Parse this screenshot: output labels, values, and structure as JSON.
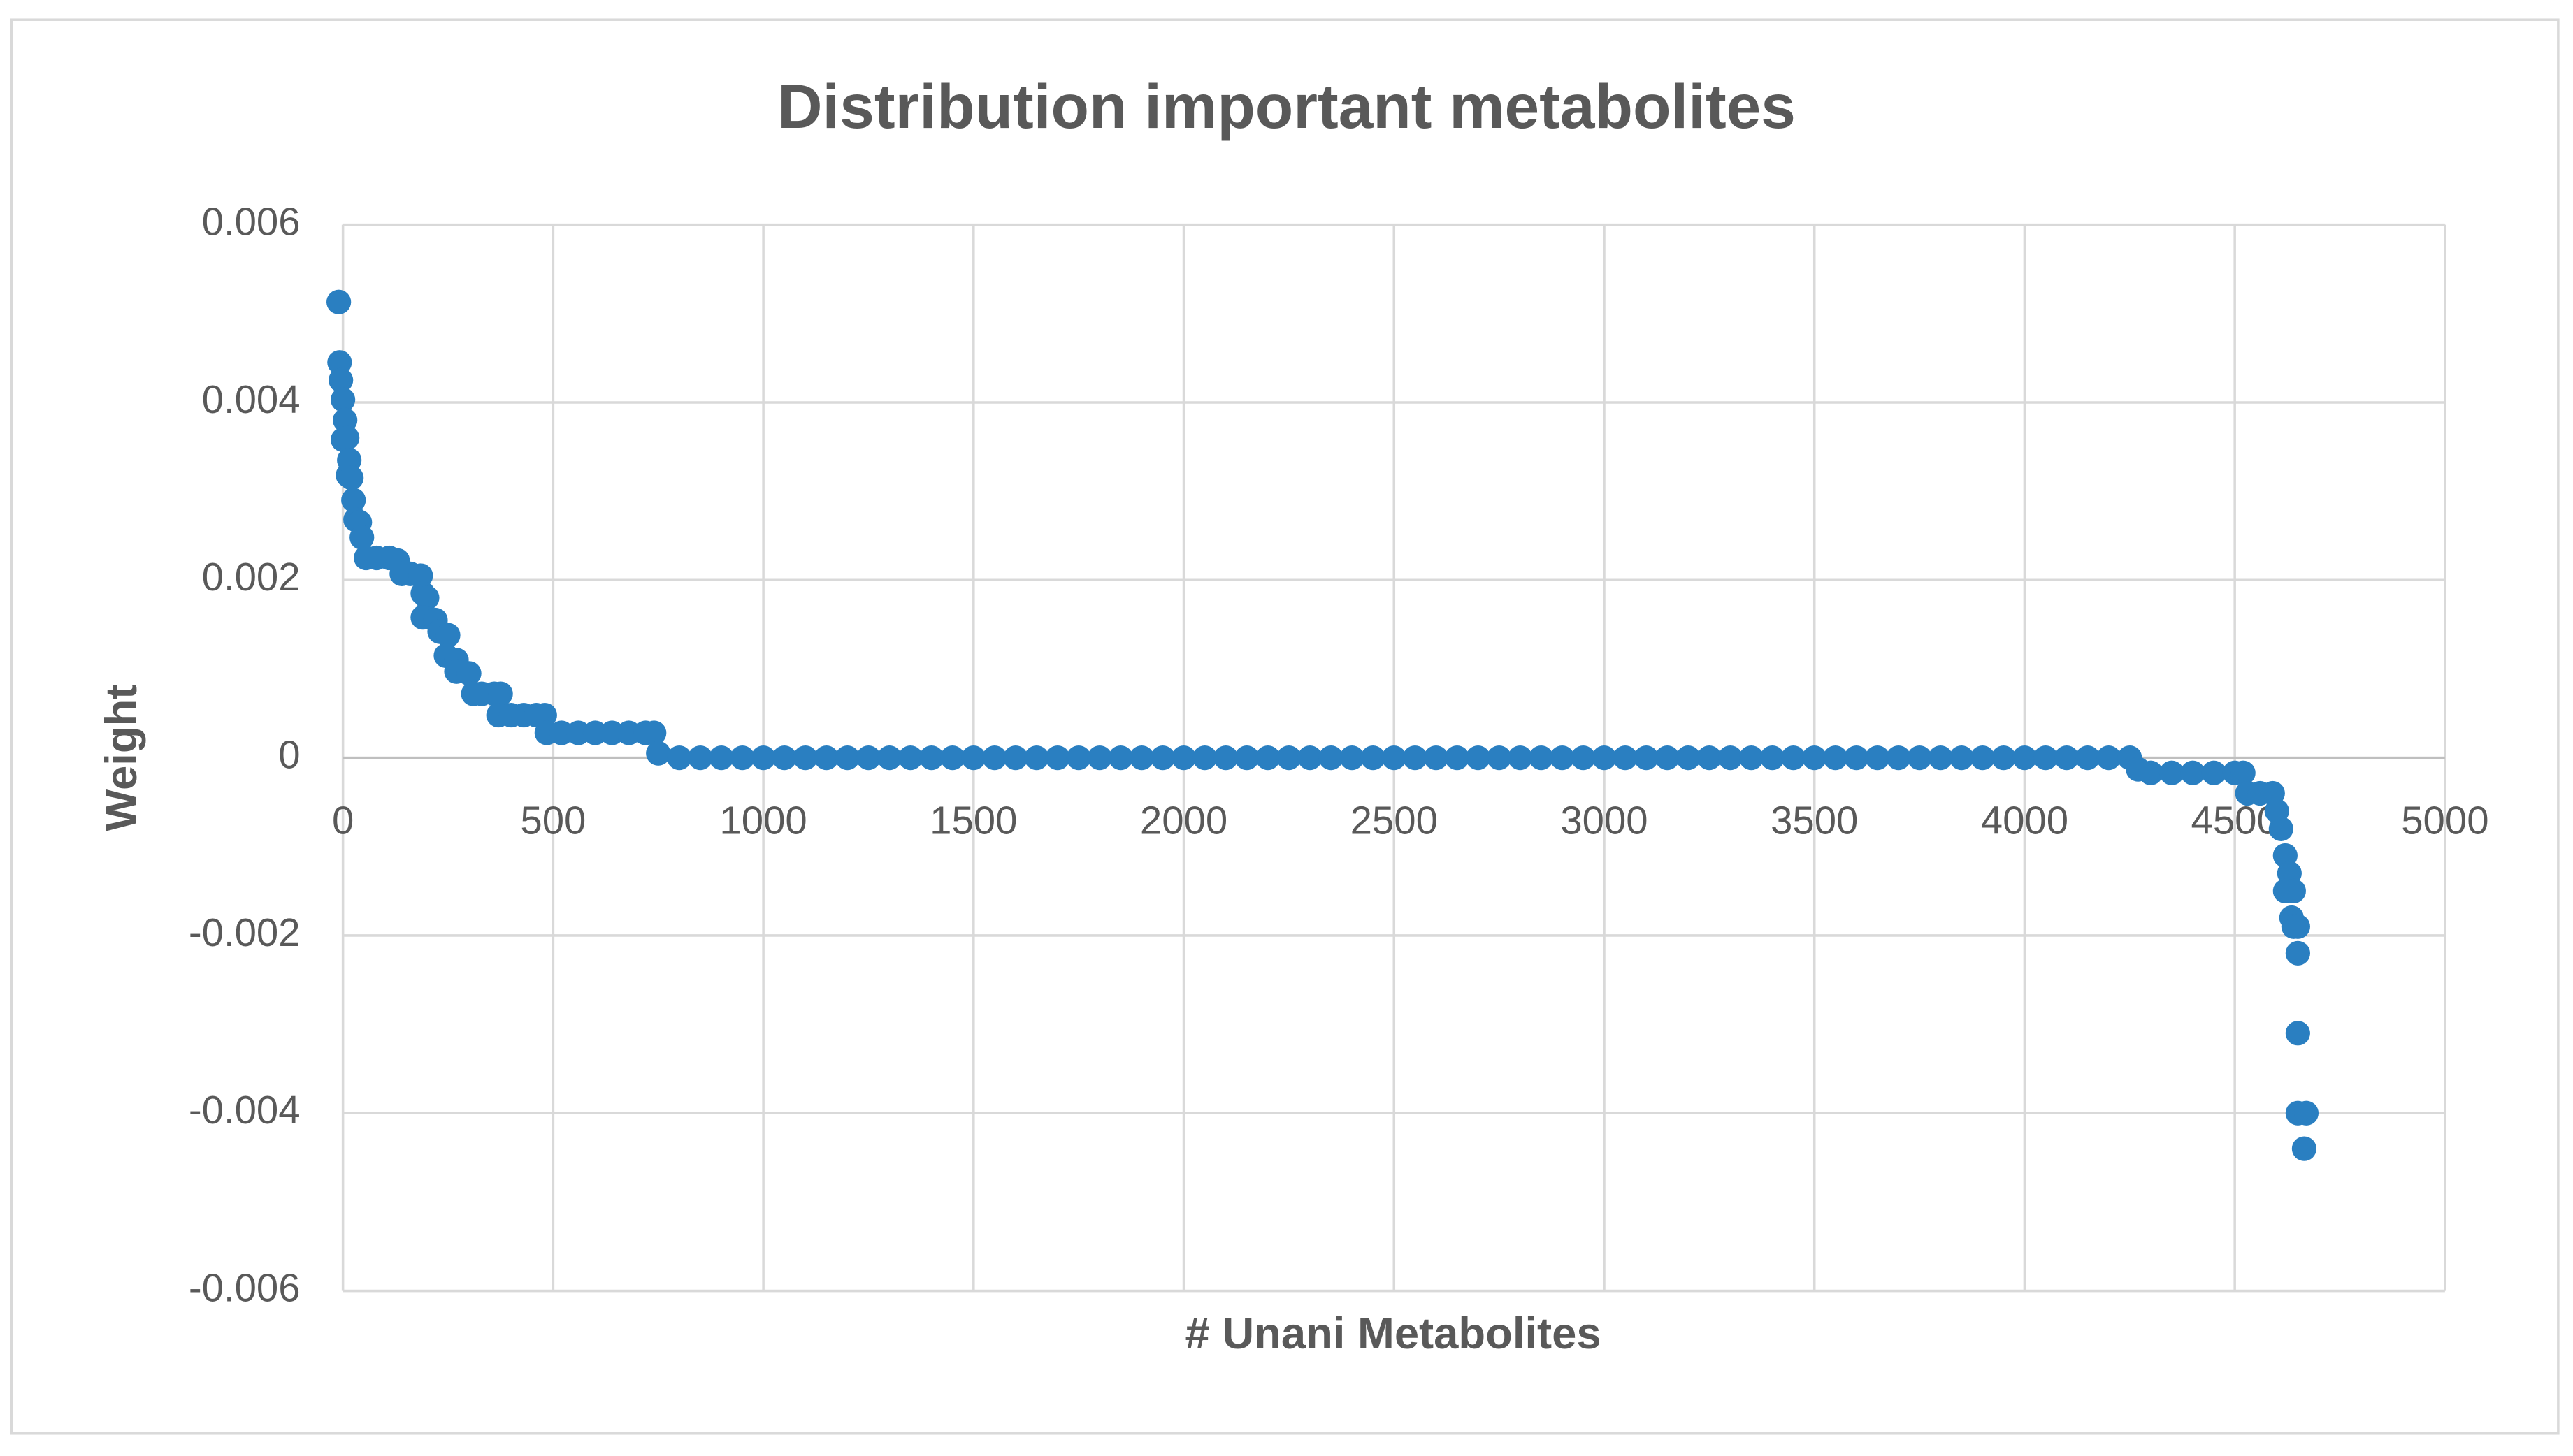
{
  "chart_data": {
    "type": "scatter",
    "title": "Distribution important metabolites",
    "xlabel": "# Unani Metabolites",
    "ylabel": "Weight",
    "color": "#2a7fc1",
    "grid": true,
    "xlim": [
      0,
      5000
    ],
    "ylim": [
      -0.006,
      0.006
    ],
    "xticks": [
      0,
      500,
      1000,
      1500,
      2000,
      2500,
      3000,
      3500,
      4000,
      4500,
      5000
    ],
    "yticks": [
      -0.006,
      -0.004,
      -0.002,
      0,
      0.002,
      0.004,
      0.006
    ],
    "x": [
      -10,
      -8,
      -5,
      0,
      5,
      0,
      10,
      15,
      12,
      20,
      25,
      30,
      40,
      45,
      55,
      80,
      110,
      130,
      140,
      160,
      185,
      190,
      200,
      190,
      220,
      230,
      250,
      245,
      270,
      270,
      300,
      310,
      330,
      360,
      375,
      370,
      400,
      430,
      460,
      480,
      485,
      520,
      560,
      600,
      640,
      680,
      720,
      740,
      750,
      800,
      850,
      900,
      950,
      1000,
      1050,
      1100,
      1150,
      1200,
      1250,
      1300,
      1350,
      1400,
      1450,
      1500,
      1550,
      1600,
      1650,
      1700,
      1750,
      1800,
      1850,
      1900,
      1950,
      2000,
      2050,
      2100,
      2150,
      2200,
      2250,
      2300,
      2350,
      2400,
      2450,
      2500,
      2550,
      2600,
      2650,
      2700,
      2750,
      2800,
      2850,
      2900,
      2950,
      3000,
      3050,
      3100,
      3150,
      3200,
      3250,
      3300,
      3350,
      3400,
      3450,
      3500,
      3550,
      3600,
      3650,
      3700,
      3750,
      3800,
      3850,
      3900,
      3950,
      4000,
      4050,
      4100,
      4150,
      4200,
      4250,
      4270,
      4300,
      4350,
      4400,
      4450,
      4500,
      4520,
      4530,
      4560,
      4590,
      4600,
      4610,
      4620,
      4630,
      4620,
      4640,
      4635,
      4640,
      4650,
      4650,
      4650,
      4650,
      4670,
      4665
    ],
    "y": [
      0.00513,
      0.00445,
      0.00425,
      0.00403,
      0.0038,
      0.00358,
      0.0036,
      0.00335,
      0.00318,
      0.00315,
      0.0029,
      0.00268,
      0.00265,
      0.00248,
      0.00225,
      0.00225,
      0.00225,
      0.00222,
      0.00207,
      0.00207,
      0.00205,
      0.00185,
      0.0018,
      0.00158,
      0.00155,
      0.00142,
      0.00138,
      0.00115,
      0.0011,
      0.00097,
      0.00095,
      0.00072,
      0.00072,
      0.00072,
      0.00072,
      0.00048,
      0.00048,
      0.00048,
      0.00048,
      0.00048,
      0.00028,
      0.00028,
      0.00028,
      0.00028,
      0.00028,
      0.00028,
      0.00028,
      0.00028,
      5e-05,
      0,
      0,
      0,
      0,
      0,
      0,
      0,
      0,
      0,
      0,
      0,
      0,
      0,
      0,
      0,
      0,
      0,
      0,
      0,
      0,
      0,
      0,
      0,
      0,
      0,
      0,
      0,
      0,
      0,
      0,
      0,
      0,
      0,
      0,
      0,
      0,
      0,
      0,
      0,
      0,
      0,
      0,
      0,
      0,
      0,
      0,
      0,
      0,
      0,
      0,
      0,
      0,
      0,
      0,
      0,
      0,
      0,
      0,
      0,
      0,
      0,
      0,
      0,
      0,
      0,
      0,
      0,
      0,
      0,
      0,
      -0.00013,
      -0.00017,
      -0.00017,
      -0.00017,
      -0.00017,
      -0.00017,
      -0.00017,
      -0.0004,
      -0.0004,
      -0.0004,
      -0.0006,
      -0.0008,
      -0.0011,
      -0.0013,
      -0.0015,
      -0.0015,
      -0.0018,
      -0.0019,
      -0.0019,
      -0.0022,
      -0.0031,
      -0.004,
      -0.004,
      -0.0044
    ]
  }
}
